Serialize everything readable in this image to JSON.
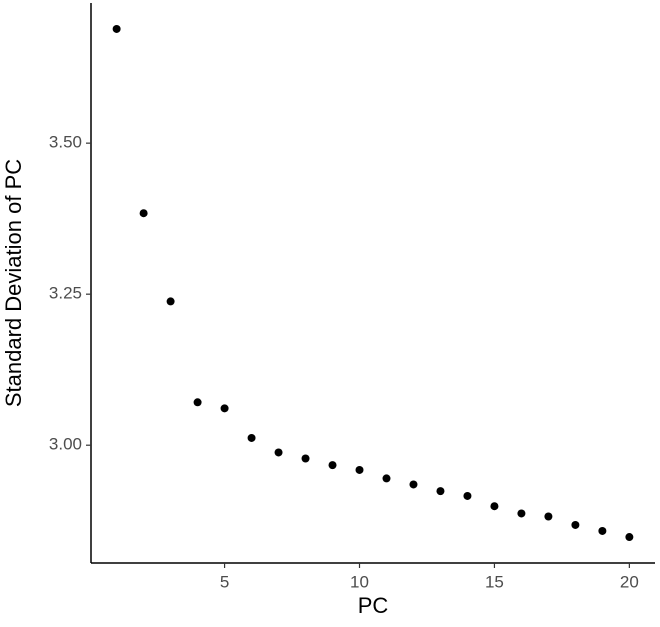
{
  "chart_data": {
    "type": "scatter",
    "xlabel": "PC",
    "ylabel": "Standard Deviation of PC",
    "x": [
      1,
      2,
      3,
      4,
      5,
      6,
      7,
      8,
      9,
      10,
      11,
      12,
      13,
      14,
      15,
      16,
      17,
      18,
      19,
      20
    ],
    "values": [
      3.689,
      3.384,
      3.238,
      3.071,
      3.061,
      3.012,
      2.988,
      2.978,
      2.967,
      2.959,
      2.945,
      2.935,
      2.924,
      2.916,
      2.899,
      2.887,
      2.882,
      2.868,
      2.858,
      2.848
    ],
    "color": "#000000",
    "xlim": [
      0.05,
      20.95
    ],
    "xticks": [
      5,
      10,
      15,
      20
    ],
    "ylim": [
      2.805,
      3.732
    ],
    "yticks": [
      {
        "value": 3,
        "label": "3.00"
      },
      3.25,
      {
        "value": 3.5,
        "label": "3.50"
      }
    ],
    "grid": false
  }
}
